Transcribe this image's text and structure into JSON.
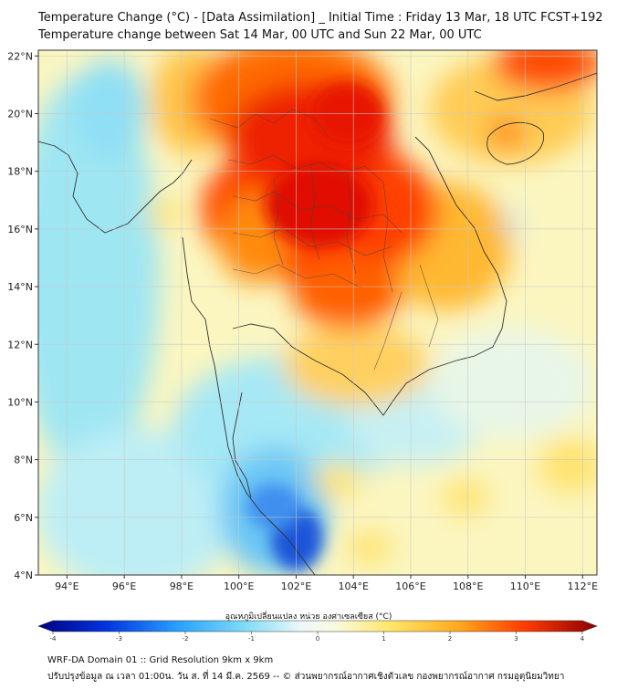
{
  "title_line1": "Temperature Change (°C) - [Data Assimilation] _ Initial Time : Friday 13 Mar, 18 UTC FCST+192",
  "title_line2": "Temperature change between Sat 14 Mar, 00 UTC and Sun 22 Mar, 00 UTC",
  "lat_ticks": [
    "22°N",
    "20°N",
    "18°N",
    "16°N",
    "14°N",
    "12°N",
    "10°N",
    "8°N",
    "6°N",
    "4°N"
  ],
  "lon_ticks": [
    "94°E",
    "96°E",
    "98°E",
    "100°E",
    "102°E",
    "104°E",
    "106°E",
    "108°E",
    "110°E",
    "112°E"
  ],
  "colorbar": {
    "label": "อุณหภูมิเปลี่ยนแปลง หน่วย องศาเซลเซียส (°C)",
    "ticks": [
      "-4",
      "-3",
      "-2",
      "-1",
      "0",
      "1",
      "2",
      "3",
      "4"
    ],
    "range": [
      -4,
      4
    ]
  },
  "footer_line1": "WRF-DA Domain 01 :: Grid Resolution 9km x 9km",
  "footer_line2": "ปรับปรุงข้อมูล ณ เวลา 01:00น. วัน ส. ที่ 14 มี.ค. 2569 -- © ส่วนพยากรณ์อากาศเชิงตัวเลข กองพยากรณ์อากาศ กรมอุตุนิยมวิทยา",
  "colors": {
    "hot": "#e10000",
    "warm": "#ff8c00",
    "mild": "#ffe066",
    "neutral": "#f5f5e6",
    "cool": "#7fdcf5",
    "cold": "#0b3bd6",
    "grid": "#c8c8c8",
    "coast": "#333333"
  }
}
